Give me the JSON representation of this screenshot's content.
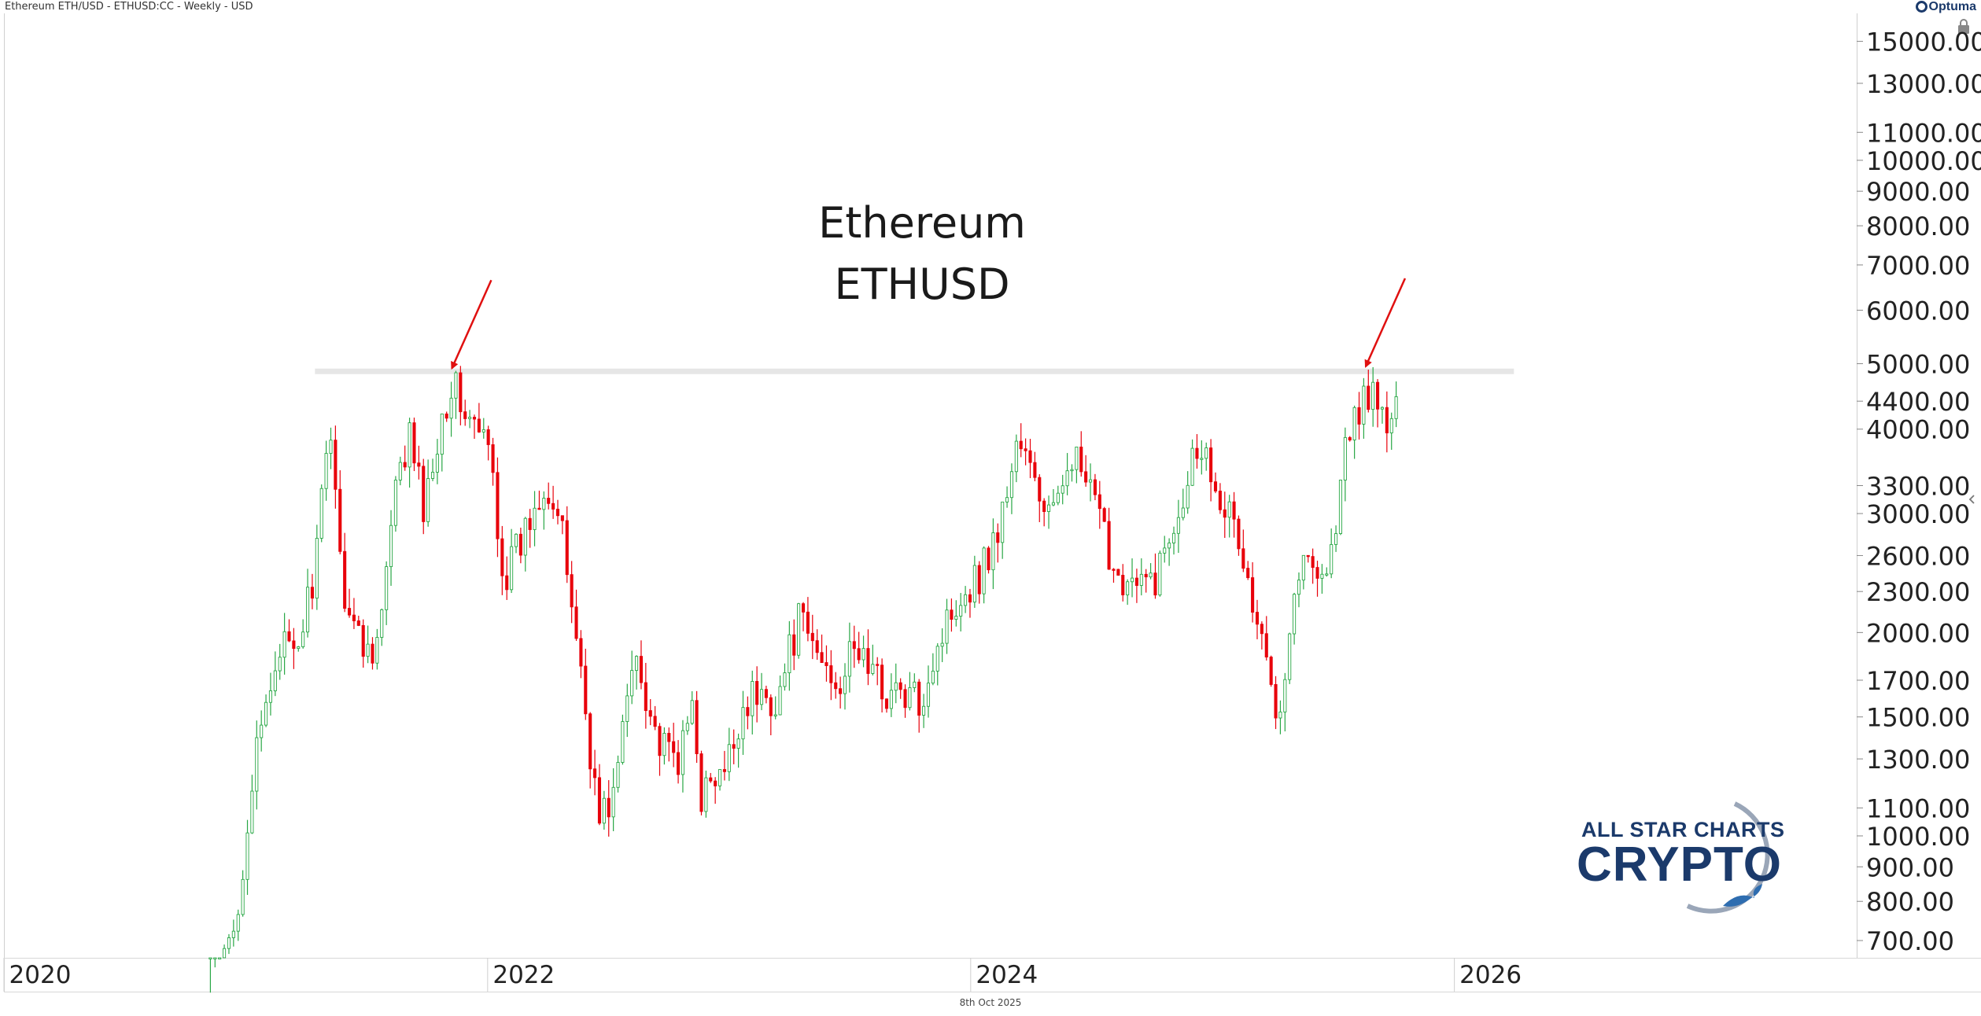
{
  "header": {
    "instrument": "Ethereum ETH/USD - ETHUSD:CC - Weekly - USD"
  },
  "brand": {
    "name": "Optuma"
  },
  "footer": {
    "date": "8th Oct 2025"
  },
  "logo": {
    "line1": "ALL STAR CHARTS",
    "line2": "CRYPTO"
  },
  "colors": {
    "up": "#28a745",
    "down": "#e8000b",
    "arrow": "#e01010",
    "resistance": "#e6e6e6",
    "logo": "#1b3a6b"
  },
  "chart_data": {
    "type": "candlestick",
    "title": "Ethereum",
    "subtitle": "ETHUSD",
    "interval": "Weekly",
    "y_scale": "log",
    "ylim": [
      660,
      16500
    ],
    "y_ticks": [
      "15000.00",
      "13000.00",
      "11000.00",
      "10000.00",
      "9000.00",
      "8000.00",
      "7000.00",
      "6000.00",
      "5000.00",
      "4400.00",
      "4000.00",
      "3300.00",
      "3000.00",
      "2600.00",
      "2300.00",
      "2000.00",
      "1700.00",
      "1500.00",
      "1300.00",
      "1100.00",
      "1000.00",
      "900.00",
      "800.00",
      "700.00"
    ],
    "x_ticks": [
      "2020",
      "2022",
      "2024",
      "2026"
    ],
    "xlim": [
      "2020-01-01",
      "2027-09-01"
    ],
    "resistance": {
      "value": 4870,
      "from": "2021-04-15",
      "to": "2026-04-01"
    },
    "annotations": [
      {
        "type": "arrow",
        "target_date": "2021-11-08",
        "target_price": 4870
      },
      {
        "type": "arrow",
        "target_date": "2025-08-20",
        "target_price": 4900
      }
    ],
    "anchor_points": [
      [
        "2020-11-01",
        500
      ],
      [
        "2020-11-15",
        600
      ],
      [
        "2020-12-15",
        730
      ],
      [
        "2021-01-10",
        1200
      ],
      [
        "2021-02-20",
        1950
      ],
      [
        "2021-03-15",
        1800
      ],
      [
        "2021-04-15",
        2500
      ],
      [
        "2021-05-10",
        4150
      ],
      [
        "2021-05-25",
        2400
      ],
      [
        "2021-06-25",
        1900
      ],
      [
        "2021-07-20",
        1950
      ],
      [
        "2021-08-15",
        3200
      ],
      [
        "2021-09-05",
        3900
      ],
      [
        "2021-09-28",
        3000
      ],
      [
        "2021-10-20",
        4100
      ],
      [
        "2021-11-08",
        4700
      ],
      [
        "2021-12-05",
        4100
      ],
      [
        "2022-01-05",
        3700
      ],
      [
        "2022-01-25",
        2400
      ],
      [
        "2022-02-20",
        2700
      ],
      [
        "2022-03-28",
        3400
      ],
      [
        "2022-04-20",
        2900
      ],
      [
        "2022-05-15",
        2000
      ],
      [
        "2022-06-18",
        1050
      ],
      [
        "2022-07-10",
        1150
      ],
      [
        "2022-08-12",
        1900
      ],
      [
        "2022-09-20",
        1330
      ],
      [
        "2022-10-20",
        1300
      ],
      [
        "2022-11-08",
        1600
      ],
      [
        "2022-11-20",
        1150
      ],
      [
        "2022-12-25",
        1220
      ],
      [
        "2023-01-25",
        1600
      ],
      [
        "2023-03-15",
        1600
      ],
      [
        "2023-04-15",
        2080
      ],
      [
        "2023-05-20",
        1820
      ],
      [
        "2023-06-15",
        1700
      ],
      [
        "2023-07-15",
        1900
      ],
      [
        "2023-08-20",
        1650
      ],
      [
        "2023-10-15",
        1580
      ],
      [
        "2023-11-10",
        1900
      ],
      [
        "2023-12-10",
        2250
      ],
      [
        "2024-01-15",
        2450
      ],
      [
        "2024-02-15",
        2900
      ],
      [
        "2024-03-12",
        3900
      ],
      [
        "2024-04-15",
        3150
      ],
      [
        "2024-05-10",
        2950
      ],
      [
        "2024-05-28",
        3800
      ],
      [
        "2024-07-05",
        3100
      ],
      [
        "2024-08-05",
        2500
      ],
      [
        "2024-09-10",
        2300
      ],
      [
        "2024-10-10",
        2450
      ],
      [
        "2024-11-10",
        3100
      ],
      [
        "2024-12-10",
        3900
      ],
      [
        "2025-01-10",
        3300
      ],
      [
        "2025-02-10",
        2700
      ],
      [
        "2025-03-10",
        2000
      ],
      [
        "2025-04-10",
        1550
      ],
      [
        "2025-05-10",
        2500
      ],
      [
        "2025-06-10",
        2550
      ],
      [
        "2025-06-25",
        2450
      ],
      [
        "2025-07-20",
        3700
      ],
      [
        "2025-08-20",
        4600
      ],
      [
        "2025-09-05",
        4300
      ],
      [
        "2025-09-25",
        4000
      ],
      [
        "2025-10-08",
        4450
      ]
    ]
  }
}
